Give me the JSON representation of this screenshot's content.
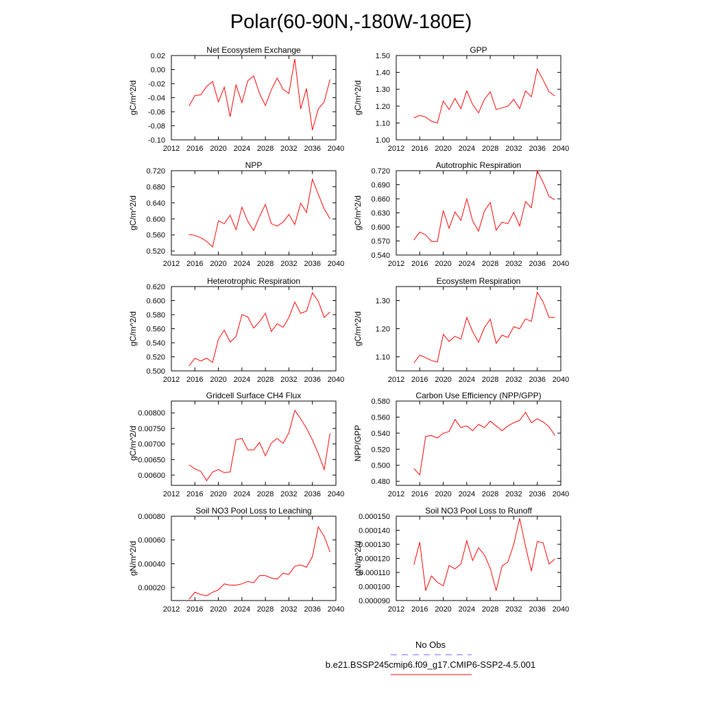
{
  "figure_title": "Polar(60-90N,-180W-180E)",
  "legend": {
    "obs_label": "No Obs",
    "model_label": "b.e21.BSSP245cmip6.f09_g17.CMIP6-SSP2-4.5.001",
    "obs_color": "#6666ff",
    "model_color": "#ff0000"
  },
  "line_color": "#ff0000",
  "chart_data": [
    {
      "type": "line",
      "title": "Net Ecosystem Exchange",
      "ylabel": "gC/m^2/d",
      "xlim": [
        2012,
        2040
      ],
      "xticks": [
        "2012",
        "2016",
        "2020",
        "2024",
        "2028",
        "2032",
        "2036",
        "2040"
      ],
      "ylim": [
        -0.1,
        0.02
      ],
      "yticks": [
        "-0.10",
        "-0.08",
        "-0.06",
        "-0.04",
        "-0.02",
        "0.00",
        "0.02"
      ],
      "x": [
        2015,
        2016,
        2017,
        2018,
        2019,
        2020,
        2021,
        2022,
        2023,
        2024,
        2025,
        2026,
        2027,
        2028,
        2029,
        2030,
        2031,
        2032,
        2033,
        2034,
        2035,
        2036,
        2037,
        2038,
        2039
      ],
      "series": [
        {
          "values": [
            -0.052,
            -0.037,
            -0.036,
            -0.024,
            -0.017,
            -0.046,
            -0.025,
            -0.067,
            -0.022,
            -0.047,
            -0.016,
            -0.009,
            -0.034,
            -0.051,
            -0.029,
            -0.012,
            -0.028,
            -0.034,
            0.015,
            -0.056,
            -0.027,
            -0.086,
            -0.056,
            -0.046,
            -0.014
          ]
        }
      ]
    },
    {
      "type": "line",
      "title": "GPP",
      "ylabel": "gC/m^2/d",
      "xlim": [
        2012,
        2040
      ],
      "xticks": [
        "2012",
        "2016",
        "2020",
        "2024",
        "2028",
        "2032",
        "2036",
        "2040"
      ],
      "ylim": [
        1.0,
        1.5
      ],
      "yticks": [
        "1.00",
        "1.10",
        "1.20",
        "1.30",
        "1.40",
        "1.50"
      ],
      "x": [
        2015,
        2016,
        2017,
        2018,
        2019,
        2020,
        2021,
        2022,
        2023,
        2024,
        2025,
        2026,
        2027,
        2028,
        2029,
        2030,
        2031,
        2032,
        2033,
        2034,
        2035,
        2036,
        2037,
        2038,
        2039
      ],
      "series": [
        {
          "values": [
            1.13,
            1.145,
            1.135,
            1.11,
            1.1,
            1.23,
            1.18,
            1.245,
            1.185,
            1.29,
            1.21,
            1.16,
            1.24,
            1.285,
            1.18,
            1.19,
            1.2,
            1.24,
            1.185,
            1.29,
            1.255,
            1.42,
            1.355,
            1.285,
            1.26
          ]
        }
      ]
    },
    {
      "type": "line",
      "title": "NPP",
      "ylabel": "gC/m^2/d",
      "xlim": [
        2012,
        2040
      ],
      "xticks": [
        "2012",
        "2016",
        "2020",
        "2024",
        "2028",
        "2032",
        "2036",
        "2040"
      ],
      "ylim": [
        0.51,
        0.72
      ],
      "yticks": [
        "0.520",
        "0.560",
        "0.600",
        "0.640",
        "0.680",
        "0.720"
      ],
      "x": [
        2015,
        2016,
        2017,
        2018,
        2019,
        2020,
        2021,
        2022,
        2023,
        2024,
        2025,
        2026,
        2027,
        2028,
        2029,
        2030,
        2031,
        2032,
        2033,
        2034,
        2035,
        2036,
        2037,
        2038,
        2039
      ],
      "series": [
        {
          "values": [
            0.561,
            0.559,
            0.553,
            0.544,
            0.53,
            0.595,
            0.588,
            0.609,
            0.573,
            0.629,
            0.594,
            0.571,
            0.606,
            0.636,
            0.588,
            0.582,
            0.592,
            0.611,
            0.586,
            0.639,
            0.616,
            0.699,
            0.661,
            0.625,
            0.6
          ]
        }
      ]
    },
    {
      "type": "line",
      "title": "Autotrophic Respiration",
      "ylabel": "gC/m^2/d",
      "xlim": [
        2012,
        2040
      ],
      "xticks": [
        "2012",
        "2016",
        "2020",
        "2024",
        "2028",
        "2032",
        "2036",
        "2040"
      ],
      "ylim": [
        0.54,
        0.72
      ],
      "yticks": [
        "0.540",
        "0.570",
        "0.600",
        "0.630",
        "0.660",
        "0.690",
        "0.720"
      ],
      "x": [
        2015,
        2016,
        2017,
        2018,
        2019,
        2020,
        2021,
        2022,
        2023,
        2024,
        2025,
        2026,
        2027,
        2028,
        2029,
        2030,
        2031,
        2032,
        2033,
        2034,
        2035,
        2036,
        2037,
        2038,
        2039
      ],
      "series": [
        {
          "values": [
            0.572,
            0.589,
            0.583,
            0.569,
            0.569,
            0.635,
            0.597,
            0.632,
            0.614,
            0.66,
            0.613,
            0.591,
            0.634,
            0.652,
            0.593,
            0.61,
            0.607,
            0.631,
            0.602,
            0.654,
            0.641,
            0.72,
            0.695,
            0.665,
            0.658
          ]
        }
      ]
    },
    {
      "type": "line",
      "title": "Heterotrophic Respiration",
      "ylabel": "gC/m^2/d",
      "xlim": [
        2012,
        2040
      ],
      "xticks": [
        "2012",
        "2016",
        "2020",
        "2024",
        "2028",
        "2032",
        "2036",
        "2040"
      ],
      "ylim": [
        0.5,
        0.62
      ],
      "yticks": [
        "0.500",
        "0.520",
        "0.540",
        "0.560",
        "0.580",
        "0.600",
        "0.620"
      ],
      "x": [
        2015,
        2016,
        2017,
        2018,
        2019,
        2020,
        2021,
        2022,
        2023,
        2024,
        2025,
        2026,
        2027,
        2028,
        2029,
        2030,
        2031,
        2032,
        2033,
        2034,
        2035,
        2036,
        2037,
        2038,
        2039
      ],
      "series": [
        {
          "values": [
            0.507,
            0.518,
            0.514,
            0.518,
            0.512,
            0.545,
            0.558,
            0.541,
            0.549,
            0.58,
            0.577,
            0.561,
            0.57,
            0.582,
            0.556,
            0.567,
            0.562,
            0.576,
            0.598,
            0.582,
            0.585,
            0.611,
            0.599,
            0.576,
            0.584
          ]
        }
      ]
    },
    {
      "type": "line",
      "title": "Ecosystem Respiration",
      "ylabel": "gC/m^2/d",
      "xlim": [
        2012,
        2040
      ],
      "xticks": [
        "2012",
        "2016",
        "2020",
        "2024",
        "2028",
        "2032",
        "2036",
        "2040"
      ],
      "ylim": [
        1.05,
        1.35
      ],
      "yticks": [
        "1.10",
        "1.20",
        "1.30"
      ],
      "x": [
        2015,
        2016,
        2017,
        2018,
        2019,
        2020,
        2021,
        2022,
        2023,
        2024,
        2025,
        2026,
        2027,
        2028,
        2029,
        2030,
        2031,
        2032,
        2033,
        2034,
        2035,
        2036,
        2037,
        2038,
        2039
      ],
      "series": [
        {
          "values": [
            1.078,
            1.106,
            1.097,
            1.087,
            1.081,
            1.18,
            1.155,
            1.173,
            1.163,
            1.24,
            1.19,
            1.152,
            1.204,
            1.234,
            1.148,
            1.177,
            1.169,
            1.207,
            1.2,
            1.235,
            1.226,
            1.33,
            1.295,
            1.24,
            1.24
          ]
        }
      ]
    },
    {
      "type": "line",
      "title": "Gridcell Surface CH4 Flux",
      "ylabel": "gC/m^2/d",
      "xlim": [
        2012,
        2040
      ],
      "xticks": [
        "2012",
        "2016",
        "2020",
        "2024",
        "2028",
        "2032",
        "2036",
        "2040"
      ],
      "ylim": [
        0.00567,
        0.00838
      ],
      "yticks": [
        "0.00600",
        "0.00650",
        "0.00700",
        "0.00750",
        "0.00800"
      ],
      "x": [
        2015,
        2016,
        2017,
        2018,
        2019,
        2020,
        2021,
        2022,
        2023,
        2024,
        2025,
        2026,
        2027,
        2028,
        2029,
        2030,
        2031,
        2032,
        2033,
        2034,
        2035,
        2036,
        2037,
        2038,
        2039
      ],
      "series": [
        {
          "values": [
            0.00633,
            0.0062,
            0.00612,
            0.00582,
            0.0061,
            0.00618,
            0.00608,
            0.0061,
            0.00714,
            0.00718,
            0.00681,
            0.00681,
            0.00705,
            0.00662,
            0.00703,
            0.00718,
            0.00702,
            0.00736,
            0.00808,
            0.00781,
            0.0075,
            0.00713,
            0.00669,
            0.00618,
            0.00734
          ]
        }
      ]
    },
    {
      "type": "line",
      "title": "Carbon Use Efficiency (NPP/GPP)",
      "ylabel": "NPP/GPP",
      "xlim": [
        2012,
        2040
      ],
      "xticks": [
        "2012",
        "2016",
        "2020",
        "2024",
        "2028",
        "2032",
        "2036",
        "2040"
      ],
      "ylim": [
        0.475,
        0.58
      ],
      "yticks": [
        "0.480",
        "0.500",
        "0.520",
        "0.540",
        "0.560",
        "0.580"
      ],
      "x": [
        2015,
        2016,
        2017,
        2018,
        2019,
        2020,
        2021,
        2022,
        2023,
        2024,
        2025,
        2026,
        2027,
        2028,
        2029,
        2030,
        2031,
        2032,
        2033,
        2034,
        2035,
        2036,
        2037,
        2038,
        2039
      ],
      "series": [
        {
          "values": [
            0.496,
            0.488,
            0.536,
            0.537,
            0.534,
            0.54,
            0.542,
            0.557,
            0.547,
            0.549,
            0.543,
            0.551,
            0.547,
            0.555,
            0.549,
            0.543,
            0.549,
            0.553,
            0.556,
            0.566,
            0.553,
            0.558,
            0.554,
            0.548,
            0.537
          ]
        }
      ]
    },
    {
      "type": "line",
      "title": "Soil NO3 Pool Loss to Leaching",
      "ylabel": "gN/m^2/d",
      "xlim": [
        2012,
        2040
      ],
      "xticks": [
        "2012",
        "2016",
        "2020",
        "2024",
        "2028",
        "2032",
        "2036",
        "2040"
      ],
      "ylim": [
        9e-05,
        0.0008
      ],
      "yticks": [
        "0.00020",
        "0.00040",
        "0.00060",
        "0.00080"
      ],
      "x": [
        2015,
        2016,
        2017,
        2018,
        2019,
        2020,
        2021,
        2022,
        2023,
        2024,
        2025,
        2026,
        2027,
        2028,
        2029,
        2030,
        2031,
        2032,
        2033,
        2034,
        2035,
        2036,
        2037,
        2038,
        2039
      ],
      "series": [
        {
          "values": [
            0.0001,
            0.00016,
            0.00014,
            0.00013,
            0.00016,
            0.00018,
            0.00023,
            0.00022,
            0.00022,
            0.00023,
            0.00025,
            0.00024,
            0.0003,
            0.0003,
            0.00028,
            0.00027,
            0.00032,
            0.00031,
            0.00038,
            0.00039,
            0.00037,
            0.00046,
            0.00071,
            0.00063,
            0.0005
          ]
        }
      ]
    },
    {
      "type": "line",
      "title": "Soil NO3 Pool Loss to Runoff",
      "ylabel": "gN/m^2/d",
      "xlim": [
        2012,
        2040
      ],
      "xticks": [
        "2012",
        "2016",
        "2020",
        "2024",
        "2028",
        "2032",
        "2036",
        "2040"
      ],
      "ylim": [
        9e-05,
        0.00015
      ],
      "yticks": [
        "0.000090",
        "0.000100",
        "0.000110",
        "0.000120",
        "0.000130",
        "0.000140",
        "0.000150"
      ],
      "x": [
        2015,
        2016,
        2017,
        2018,
        2019,
        2020,
        2021,
        2022,
        2023,
        2024,
        2025,
        2026,
        2027,
        2028,
        2029,
        2030,
        2031,
        2032,
        2033,
        2034,
        2035,
        2036,
        2037,
        2038,
        2039
      ],
      "series": [
        {
          "values": [
            0.0001155,
            0.0001315,
            9.7e-05,
            0.0001075,
            0.000103,
            0.0001005,
            0.000115,
            0.0001125,
            0.000116,
            0.0001325,
            0.0001185,
            0.0001275,
            0.0001225,
            0.000113,
            9.7e-05,
            0.0001145,
            0.0001175,
            0.00013,
            0.0001485,
            0.0001285,
            0.000111,
            0.000132,
            0.000131,
            0.000116,
            0.0001195
          ]
        }
      ]
    }
  ]
}
